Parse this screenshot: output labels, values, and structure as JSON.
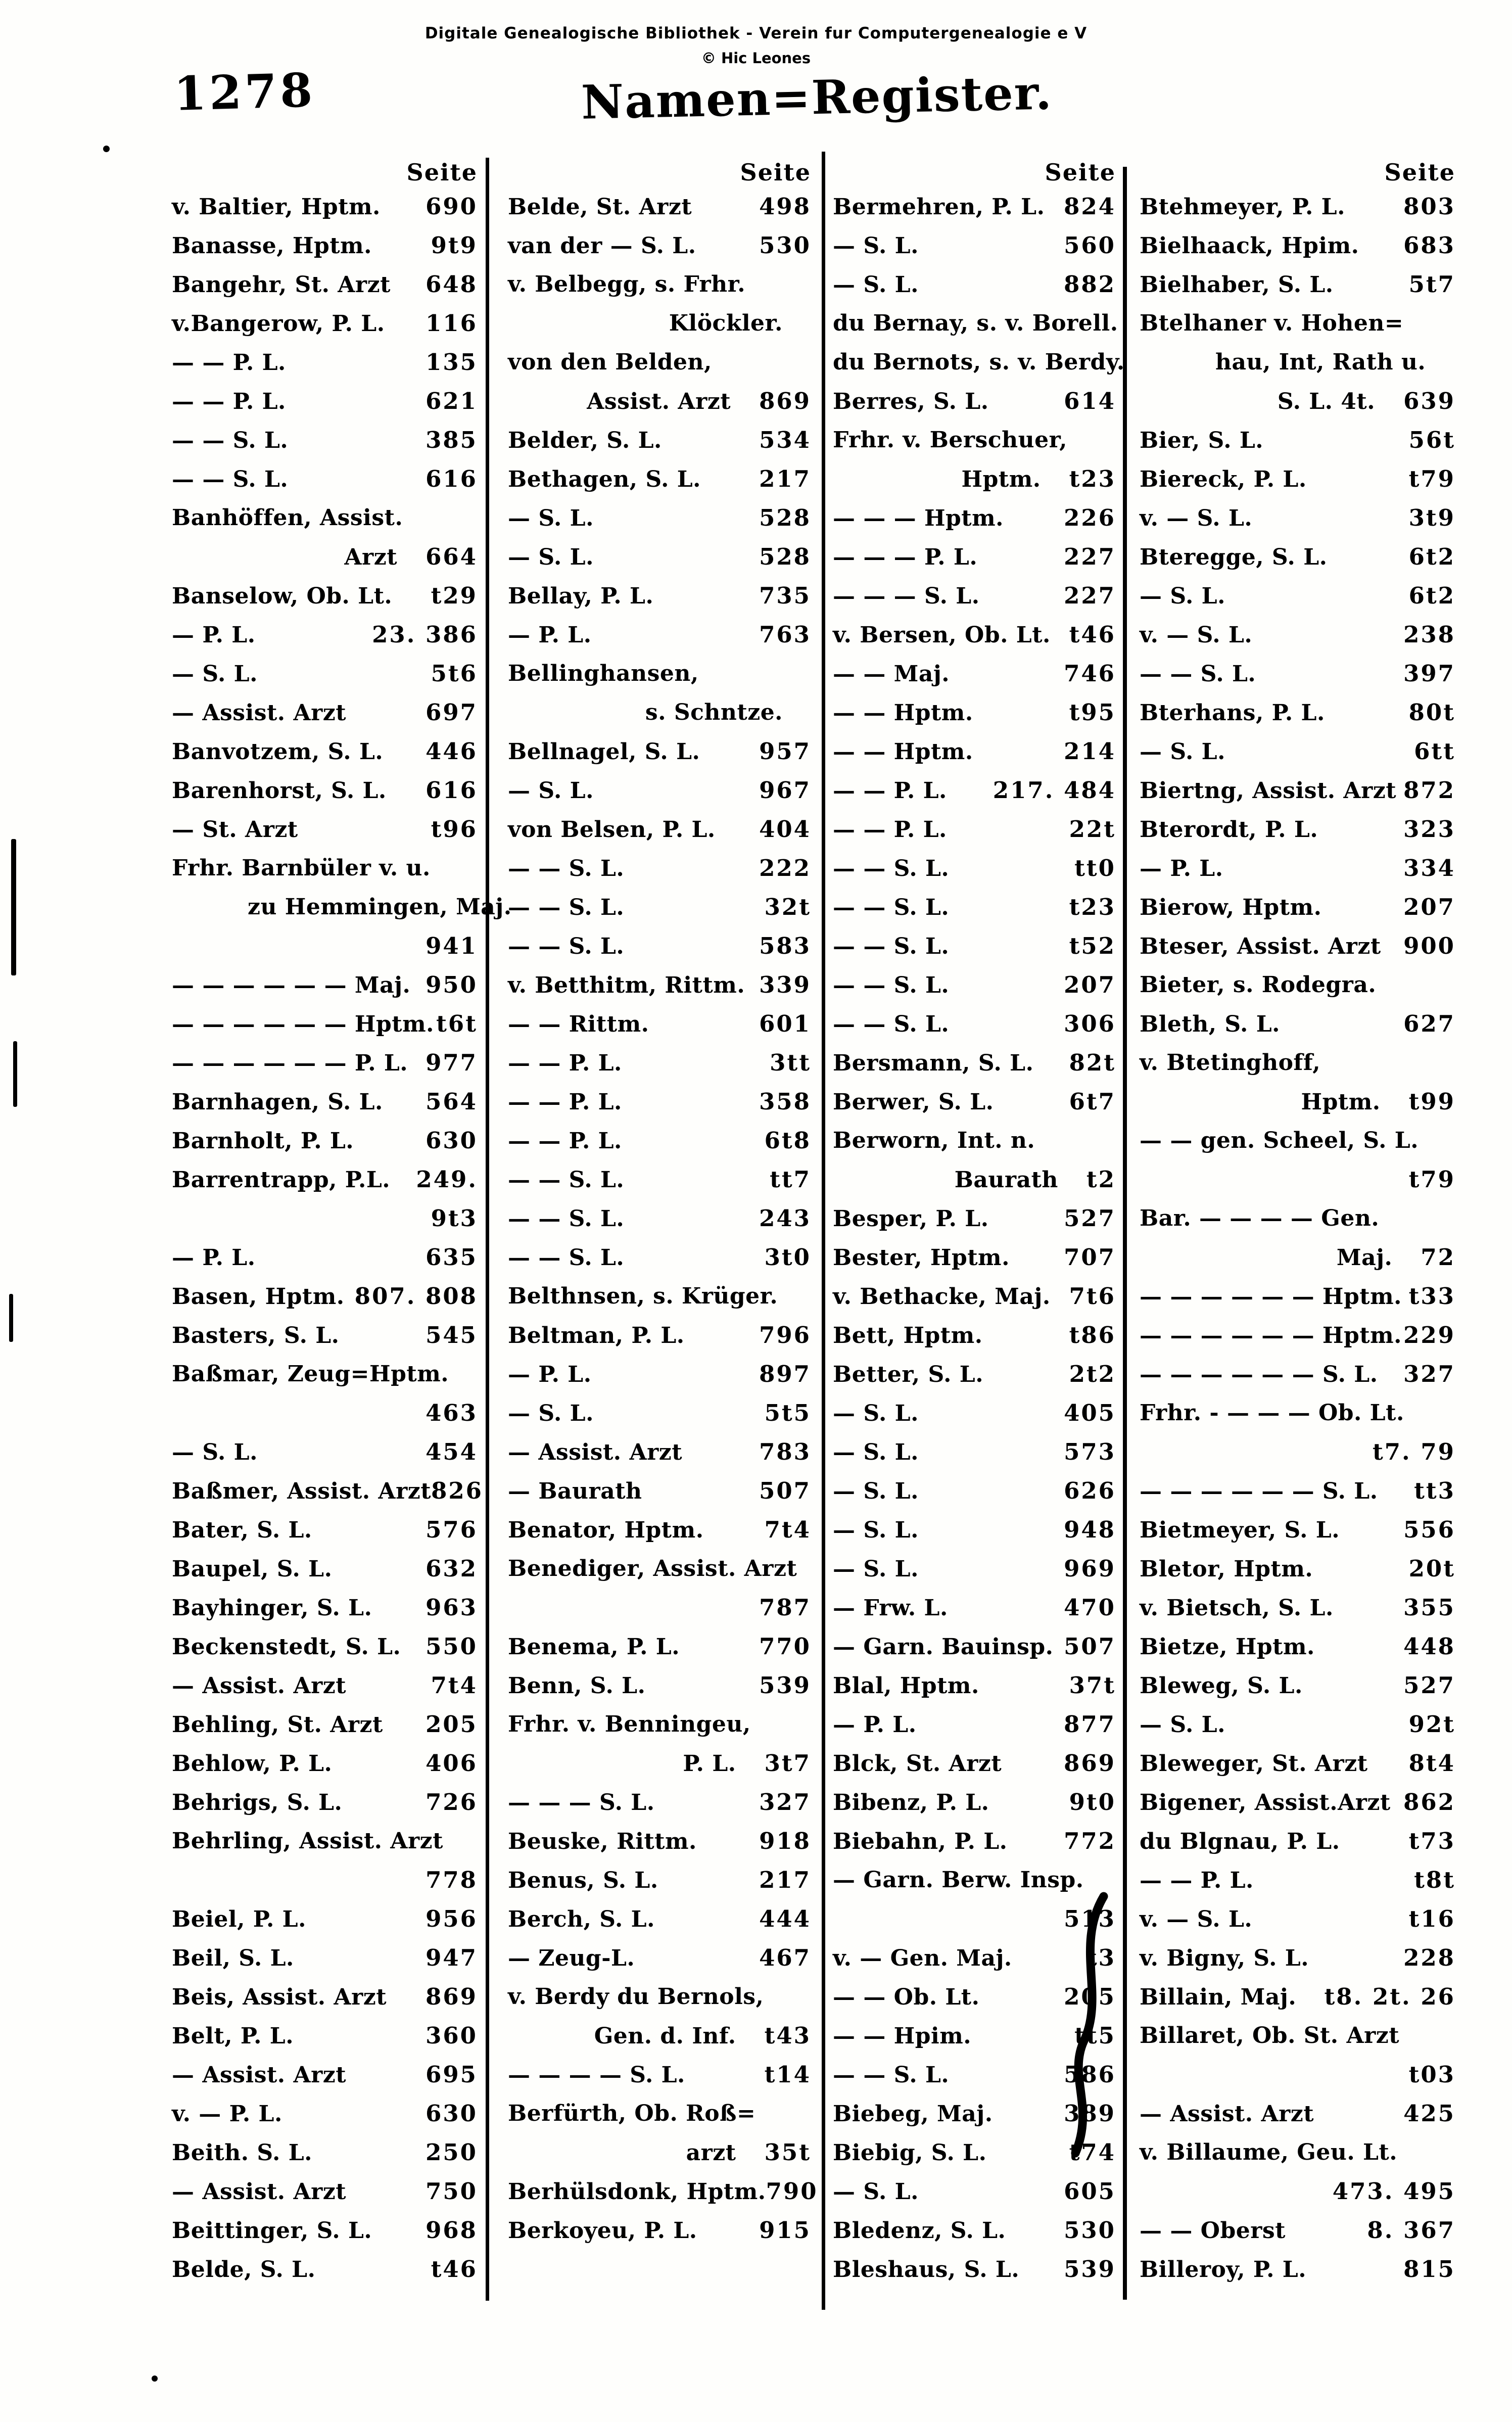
{
  "watermark": {
    "line1": "Digitale Genealogische Bibliothek - Verein fur Computergenealogie e V",
    "line2": "© Hic Leones"
  },
  "page_number": "1278",
  "title": "Namen=Register.",
  "seite_label": "Seite",
  "columns": [
    {
      "entries": [
        {
          "t": "v. Baltier, Hptm.",
          "p": "690"
        },
        {
          "t": "Banasse, Hptm.",
          "p": "9t9"
        },
        {
          "t": "Bangehr, St. Arzt",
          "p": "648"
        },
        {
          "t": "v.Bangerow, P. L.",
          "p": "116"
        },
        {
          "t": "— — P. L.",
          "p": "135"
        },
        {
          "t": "— — P. L.",
          "p": "621"
        },
        {
          "t": "— — S. L.",
          "p": "385"
        },
        {
          "t": "— — S. L.",
          "p": "616"
        },
        {
          "t": "Banhöffen, Assist.",
          "p": ""
        },
        {
          "t": "Arzt",
          "p": "664",
          "s": "c"
        },
        {
          "t": "Banselow, Ob. Lt.",
          "p": "t29"
        },
        {
          "t": "— P. L.",
          "p": "23. 386"
        },
        {
          "t": "— S. L.",
          "p": "5t6"
        },
        {
          "t": "— Assist. Arzt",
          "p": "697"
        },
        {
          "t": "Banvotzem, S. L.",
          "p": "446"
        },
        {
          "t": "Barenhorst, S. L.",
          "p": "616"
        },
        {
          "t": "— St. Arzt",
          "p": "t96"
        },
        {
          "t": "Frhr. Barnbüler v. u.",
          "p": ""
        },
        {
          "t": "zu Hemmingen, Maj.",
          "p": "",
          "s": "i"
        },
        {
          "t": "",
          "p": "941",
          "s": "c"
        },
        {
          "t": "— — — — — — Maj.",
          "p": "950"
        },
        {
          "t": "— — — — — — Hptm.",
          "p": "t6t"
        },
        {
          "t": "— — — — — — P. L.",
          "p": "977"
        },
        {
          "t": "Barnhagen, S. L.",
          "p": "564"
        },
        {
          "t": "Barnholt, P. L.",
          "p": "630"
        },
        {
          "t": "Barrentrapp, P.L.",
          "p": "249."
        },
        {
          "t": "",
          "p": "9t3",
          "s": "c"
        },
        {
          "t": "— P. L.",
          "p": "635"
        },
        {
          "t": "Basen, Hptm.",
          "p": "807. 808"
        },
        {
          "t": "Basters, S. L.",
          "p": "545"
        },
        {
          "t": "Baßmar, Zeug=Hptm.",
          "p": ""
        },
        {
          "t": "",
          "p": "463",
          "s": "c"
        },
        {
          "t": "— S. L.",
          "p": "454"
        },
        {
          "t": "Baßmer, Assist. Arzt",
          "p": "826"
        },
        {
          "t": "Bater, S. L.",
          "p": "576"
        },
        {
          "t": "Baupel, S. L.",
          "p": "632"
        },
        {
          "t": "Bayhinger, S. L.",
          "p": "963"
        },
        {
          "t": "Beckenstedt, S. L.",
          "p": "550"
        },
        {
          "t": "— Assist. Arzt",
          "p": "7t4"
        },
        {
          "t": "Behling, St. Arzt",
          "p": "205"
        },
        {
          "t": "Behlow, P. L.",
          "p": "406"
        },
        {
          "t": "Behrigs, S. L.",
          "p": "726"
        },
        {
          "t": "Behrling, Assist. Arzt",
          "p": ""
        },
        {
          "t": "",
          "p": "778",
          "s": "c"
        },
        {
          "t": "Beiel, P. L.",
          "p": "956"
        },
        {
          "t": "Beil, S. L.",
          "p": "947"
        },
        {
          "t": "Beis, Assist. Arzt",
          "p": "869"
        },
        {
          "t": "Belt, P. L.",
          "p": "360"
        },
        {
          "t": "— Assist. Arzt",
          "p": "695"
        },
        {
          "t": "v. — P. L.",
          "p": "630"
        },
        {
          "t": "Beith. S. L.",
          "p": "250"
        },
        {
          "t": "— Assist. Arzt",
          "p": "750"
        },
        {
          "t": "Beittinger, S. L.",
          "p": "968"
        },
        {
          "t": "Belde, S. L.",
          "p": "t46"
        }
      ]
    },
    {
      "entries": [
        {
          "t": "Belde, St. Arzt",
          "p": "498"
        },
        {
          "t": "van der — S. L.",
          "p": "530"
        },
        {
          "t": "v. Belbegg, s. Frhr.",
          "p": ""
        },
        {
          "t": "Klöckler.",
          "p": "",
          "s": "c"
        },
        {
          "t": "von den Belden,",
          "p": ""
        },
        {
          "t": "Assist. Arzt",
          "p": "869",
          "s": "c"
        },
        {
          "t": "Belder, S. L.",
          "p": "534"
        },
        {
          "t": "Bethagen, S. L.",
          "p": "217"
        },
        {
          "t": "— S. L.",
          "p": "528"
        },
        {
          "t": "— S. L.",
          "p": "528"
        },
        {
          "t": "Bellay, P. L.",
          "p": "735"
        },
        {
          "t": "— P. L.",
          "p": "763"
        },
        {
          "t": "Bellinghansen,",
          "p": ""
        },
        {
          "t": "s. Schntze.",
          "p": "",
          "s": "c"
        },
        {
          "t": "Bellnagel, S. L.",
          "p": "957"
        },
        {
          "t": "— S. L.",
          "p": "967"
        },
        {
          "t": "von Belsen, P. L.",
          "p": "404"
        },
        {
          "t": "— — S. L.",
          "p": "222"
        },
        {
          "t": "— — S. L.",
          "p": "32t"
        },
        {
          "t": "— — S. L.",
          "p": "583"
        },
        {
          "t": "v. Betthitm, Rittm.",
          "p": "339"
        },
        {
          "t": "— — Rittm.",
          "p": "601"
        },
        {
          "t": "— — P. L.",
          "p": "3tt"
        },
        {
          "t": "— — P. L.",
          "p": "358"
        },
        {
          "t": "— — P. L.",
          "p": "6t8"
        },
        {
          "t": "— — S. L.",
          "p": "tt7"
        },
        {
          "t": "— — S. L.",
          "p": "243"
        },
        {
          "t": "— — S. L.",
          "p": "3t0"
        },
        {
          "t": "Belthnsen, s. Krüger.",
          "p": ""
        },
        {
          "t": "Beltman, P. L.",
          "p": "796"
        },
        {
          "t": "— P. L.",
          "p": "897"
        },
        {
          "t": "— S. L.",
          "p": "5t5"
        },
        {
          "t": "— Assist. Arzt",
          "p": "783"
        },
        {
          "t": "— Baurath",
          "p": "507"
        },
        {
          "t": "Benator, Hptm.",
          "p": "7t4"
        },
        {
          "t": "Benediger, Assist. Arzt",
          "p": ""
        },
        {
          "t": "",
          "p": "787",
          "s": "c"
        },
        {
          "t": "Benema, P. L.",
          "p": "770"
        },
        {
          "t": "Benn, S. L.",
          "p": "539"
        },
        {
          "t": "Frhr. v. Benningeu,",
          "p": ""
        },
        {
          "t": "P. L.",
          "p": "3t7",
          "s": "c"
        },
        {
          "t": "— — — S. L.",
          "p": "327"
        },
        {
          "t": "Beuske, Rittm.",
          "p": "918"
        },
        {
          "t": "Benus, S. L.",
          "p": "217"
        },
        {
          "t": "Berch, S. L.",
          "p": "444"
        },
        {
          "t": "— Zeug-L.",
          "p": "467"
        },
        {
          "t": "v. Berdy du Bernols,",
          "p": ""
        },
        {
          "t": "Gen. d. Inf.",
          "p": "t43",
          "s": "c"
        },
        {
          "t": "— — — — S. L.",
          "p": "t14"
        },
        {
          "t": "Berfürth, Ob. Roß=",
          "p": ""
        },
        {
          "t": "arzt",
          "p": "35t",
          "s": "c"
        },
        {
          "t": "Berhülsdonk, Hptm.",
          "p": "790"
        },
        {
          "t": "Berkoyeu, P. L.",
          "p": "915"
        }
      ]
    },
    {
      "entries": [
        {
          "t": "Bermehren, P. L.",
          "p": "824"
        },
        {
          "t": "— S. L.",
          "p": "560"
        },
        {
          "t": "— S. L.",
          "p": "882"
        },
        {
          "t": "du Bernay, s. v. Borell.",
          "p": ""
        },
        {
          "t": "du Bernots, s. v. Berdy.",
          "p": ""
        },
        {
          "t": "Berres, S. L.",
          "p": "614"
        },
        {
          "t": "Frhr. v. Berschuer,",
          "p": ""
        },
        {
          "t": "Hptm.",
          "p": "t23",
          "s": "c"
        },
        {
          "t": "— — — Hptm.",
          "p": "226"
        },
        {
          "t": "— — — P. L.",
          "p": "227"
        },
        {
          "t": "— — — S. L.",
          "p": "227"
        },
        {
          "t": "v. Bersen, Ob. Lt.",
          "p": "t46"
        },
        {
          "t": "— — Maj.",
          "p": "746"
        },
        {
          "t": "— — Hptm.",
          "p": "t95"
        },
        {
          "t": "— — Hptm.",
          "p": "214"
        },
        {
          "t": "— — P. L.",
          "p": "217. 484"
        },
        {
          "t": "— — P. L.",
          "p": "22t"
        },
        {
          "t": "— — S. L.",
          "p": "tt0"
        },
        {
          "t": "— — S. L.",
          "p": "t23"
        },
        {
          "t": "— — S. L.",
          "p": "t52"
        },
        {
          "t": "— — S. L.",
          "p": "207"
        },
        {
          "t": "— — S. L.",
          "p": "306"
        },
        {
          "t": "Bersmann, S. L.",
          "p": "82t"
        },
        {
          "t": "Berwer, S. L.",
          "p": "6t7"
        },
        {
          "t": "Berworn, Int. n.",
          "p": ""
        },
        {
          "t": "Baurath",
          "p": "t2",
          "s": "c"
        },
        {
          "t": "Besper, P. L.",
          "p": "527"
        },
        {
          "t": "Bester, Hptm.",
          "p": "707"
        },
        {
          "t": "v. Bethacke, Maj.",
          "p": "7t6"
        },
        {
          "t": "Bett, Hptm.",
          "p": "t86"
        },
        {
          "t": "Better, S. L.",
          "p": "2t2"
        },
        {
          "t": "— S. L.",
          "p": "405"
        },
        {
          "t": "— S. L.",
          "p": "573"
        },
        {
          "t": "— S. L.",
          "p": "626"
        },
        {
          "t": "— S. L.",
          "p": "948"
        },
        {
          "t": "— S. L.",
          "p": "969"
        },
        {
          "t": "— Frw. L.",
          "p": "470"
        },
        {
          "t": "— Garn. Bauinsp.",
          "p": "507"
        },
        {
          "t": "Blal, Hptm.",
          "p": "37t"
        },
        {
          "t": "— P. L.",
          "p": "877"
        },
        {
          "t": "Blck, St. Arzt",
          "p": "869"
        },
        {
          "t": "Bibenz, P. L.",
          "p": "9t0"
        },
        {
          "t": "Biebahn, P. L.",
          "p": "772"
        },
        {
          "t": "— Garn. Berw. Insp.",
          "p": ""
        },
        {
          "t": "",
          "p": "513",
          "s": "c"
        },
        {
          "t": "v. — Gen. Maj.",
          "p": "t3"
        },
        {
          "t": "— — Ob. Lt.",
          "p": "205"
        },
        {
          "t": "— — Hpim.",
          "p": "tt5"
        },
        {
          "t": "— — S. L.",
          "p": "586"
        },
        {
          "t": "Biebeg, Maj.",
          "p": "389"
        },
        {
          "t": "Biebig, S. L.",
          "p": "t74"
        },
        {
          "t": "— S. L.",
          "p": "605"
        },
        {
          "t": "Bledenz, S. L.",
          "p": "530"
        },
        {
          "t": "Bleshaus, S. L.",
          "p": "539"
        }
      ]
    },
    {
      "entries": [
        {
          "t": "Btehmeyer, P. L.",
          "p": "803"
        },
        {
          "t": "Bielhaack, Hpim.",
          "p": "683"
        },
        {
          "t": "Bielhaber, S. L.",
          "p": "5t7"
        },
        {
          "t": "Btelhaner v. Hohen=",
          "p": ""
        },
        {
          "t": "hau, Int, Rath u.",
          "p": "",
          "s": "i"
        },
        {
          "t": "S. L. 4t.",
          "p": "639",
          "s": "c"
        },
        {
          "t": "Bier, S. L.",
          "p": "56t"
        },
        {
          "t": "Biereck, P. L.",
          "p": "t79"
        },
        {
          "t": "v. — S. L.",
          "p": "3t9"
        },
        {
          "t": "Bteregge, S. L.",
          "p": "6t2"
        },
        {
          "t": "— S. L.",
          "p": "6t2"
        },
        {
          "t": "v. — S. L.",
          "p": "238"
        },
        {
          "t": "— — S. L.",
          "p": "397"
        },
        {
          "t": "Bterhans, P. L.",
          "p": "80t"
        },
        {
          "t": "— S. L.",
          "p": "6tt"
        },
        {
          "t": "Biertng, Assist. Arzt",
          "p": "872"
        },
        {
          "t": "Bterordt, P. L.",
          "p": "323"
        },
        {
          "t": "— P. L.",
          "p": "334"
        },
        {
          "t": "Bierow, Hptm.",
          "p": "207"
        },
        {
          "t": "Bteser, Assist. Arzt",
          "p": "900"
        },
        {
          "t": "Bieter, s. Rodegra.",
          "p": ""
        },
        {
          "t": "Bleth, S. L.",
          "p": "627"
        },
        {
          "t": "v. Btetinghoff,",
          "p": ""
        },
        {
          "t": "Hptm.",
          "p": "t99",
          "s": "c"
        },
        {
          "t": "— — gen. Scheel, S. L.",
          "p": ""
        },
        {
          "t": "",
          "p": "t79",
          "s": "c"
        },
        {
          "t": "Bar. — — — — Gen.",
          "p": ""
        },
        {
          "t": "Maj.",
          "p": "72",
          "s": "c"
        },
        {
          "t": "— — — — — — Hptm.",
          "p": "t33"
        },
        {
          "t": "— — — — — — Hptm.",
          "p": "229"
        },
        {
          "t": "— — — — — — S. L.",
          "p": "327"
        },
        {
          "t": "Frhr. - — — — Ob. Lt.",
          "p": ""
        },
        {
          "t": "",
          "p": "t7. 79",
          "s": "c"
        },
        {
          "t": "— — — — — — S. L.",
          "p": "tt3"
        },
        {
          "t": "Bietmeyer, S. L.",
          "p": "556"
        },
        {
          "t": "Bletor, Hptm.",
          "p": "20t"
        },
        {
          "t": "v. Bietsch, S. L.",
          "p": "355"
        },
        {
          "t": "Bietze, Hptm.",
          "p": "448"
        },
        {
          "t": "Bleweg, S. L.",
          "p": "527"
        },
        {
          "t": "— S. L.",
          "p": "92t"
        },
        {
          "t": "Bleweger, St. Arzt",
          "p": "8t4"
        },
        {
          "t": "Bigener, Assist.Arzt",
          "p": "862"
        },
        {
          "t": "du Blgnau, P. L.",
          "p": "t73"
        },
        {
          "t": "— — P. L.",
          "p": "t8t"
        },
        {
          "t": "v. — S. L.",
          "p": "t16"
        },
        {
          "t": "v. Bigny, S. L.",
          "p": "228"
        },
        {
          "t": "Billain, Maj.",
          "p": "t8. 2t. 26"
        },
        {
          "t": "Billaret, Ob. St. Arzt",
          "p": ""
        },
        {
          "t": "",
          "p": "t03",
          "s": "c"
        },
        {
          "t": "— Assist. Arzt",
          "p": "425"
        },
        {
          "t": "v. Billaume, Geu. Lt.",
          "p": ""
        },
        {
          "t": "",
          "p": "473. 495",
          "s": "c"
        },
        {
          "t": "— — Oberst",
          "p": "8. 367"
        },
        {
          "t": "Billeroy, P. L.",
          "p": "815"
        }
      ]
    }
  ]
}
